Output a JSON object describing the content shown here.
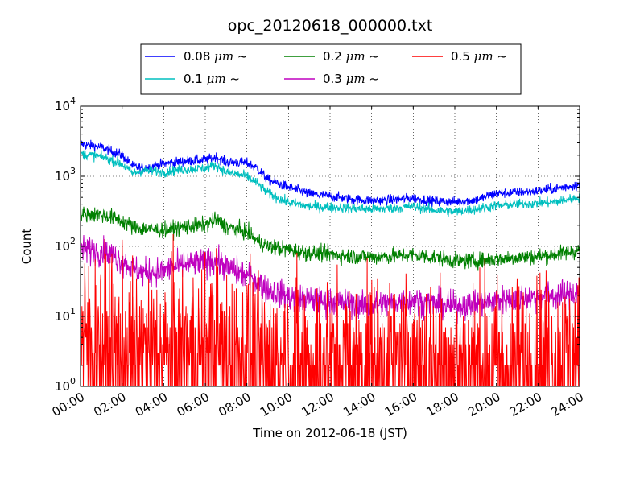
{
  "chart_data": {
    "type": "line",
    "title": "opc_20120618_000000.txt",
    "xlabel": "Time on 2012-06-18 (JST)",
    "ylabel": "Count",
    "yscale": "log",
    "xlim": [
      "00:00",
      "24:00"
    ],
    "ylim": [
      1,
      10000
    ],
    "grid": true,
    "legend_placement": "top-center",
    "x_ticks": [
      "00:00",
      "02:00",
      "04:00",
      "06:00",
      "08:00",
      "10:00",
      "12:00",
      "14:00",
      "16:00",
      "18:00",
      "20:00",
      "22:00",
      "24:00"
    ],
    "y_ticks": [
      {
        "base": "10",
        "exp": "0",
        "value": 1
      },
      {
        "base": "10",
        "exp": "1",
        "value": 10
      },
      {
        "base": "10",
        "exp": "2",
        "value": 100
      },
      {
        "base": "10",
        "exp": "3",
        "value": 1000
      },
      {
        "base": "10",
        "exp": "4",
        "value": 10000
      }
    ],
    "x": [
      "00:00",
      "01:00",
      "01:30",
      "02:00",
      "02:30",
      "03:00",
      "04:00",
      "05:00",
      "06:00",
      "06:30",
      "07:00",
      "08:00",
      "08:30",
      "09:00",
      "10:00",
      "11:00",
      "12:00",
      "13:00",
      "14:00",
      "15:00",
      "16:00",
      "17:00",
      "18:00",
      "19:00",
      "20:00",
      "21:00",
      "22:00",
      "23:00",
      "24:00"
    ],
    "series": [
      {
        "name_prefix": "0.08 ",
        "name_unit": "μm",
        "name_suffix": " ~",
        "color": "#0000ff",
        "noise": 0.05,
        "values": [
          2900,
          2600,
          2300,
          2000,
          1400,
          1300,
          1500,
          1650,
          1700,
          1900,
          1600,
          1550,
          1300,
          900,
          700,
          560,
          520,
          470,
          450,
          460,
          490,
          440,
          430,
          460,
          570,
          590,
          620,
          680,
          760
        ]
      },
      {
        "name_prefix": "0.1 ",
        "name_unit": "μm",
        "name_suffix": " ~",
        "color": "#00bfbf",
        "noise": 0.05,
        "values": [
          2100,
          1900,
          1700,
          1500,
          1100,
          1200,
          1150,
          1250,
          1300,
          1450,
          1150,
          1000,
          800,
          580,
          420,
          370,
          360,
          350,
          340,
          350,
          370,
          330,
          310,
          340,
          380,
          400,
          410,
          440,
          500
        ]
      },
      {
        "name_prefix": "0.2 ",
        "name_unit": "μm",
        "name_suffix": " ~",
        "color": "#008000",
        "noise": 0.08,
        "values": [
          290,
          280,
          260,
          230,
          190,
          180,
          170,
          190,
          200,
          240,
          190,
          160,
          120,
          100,
          90,
          80,
          78,
          72,
          70,
          73,
          75,
          70,
          62,
          62,
          66,
          70,
          72,
          78,
          88
        ]
      },
      {
        "name_prefix": "0.3 ",
        "name_unit": "μm",
        "name_suffix": " ~",
        "color": "#bf00bf",
        "noise": 0.14,
        "values": [
          90,
          85,
          75,
          62,
          48,
          42,
          45,
          55,
          58,
          65,
          50,
          38,
          32,
          24,
          19,
          17,
          16,
          15,
          14,
          16,
          17,
          15,
          14,
          15,
          17,
          18,
          19,
          20,
          22
        ]
      },
      {
        "name_prefix": "0.5 ",
        "name_unit": "μm",
        "name_suffix": " ~",
        "color": "#ff0000",
        "noise": 0.9,
        "values": [
          4,
          4,
          3.5,
          3,
          2.5,
          2.5,
          2.7,
          3,
          3.2,
          3.5,
          3,
          2.5,
          2.2,
          2,
          2,
          2,
          2,
          2,
          2,
          2,
          2,
          2,
          1.8,
          1.8,
          1.9,
          1.9,
          2,
          2,
          2.2
        ]
      }
    ]
  }
}
